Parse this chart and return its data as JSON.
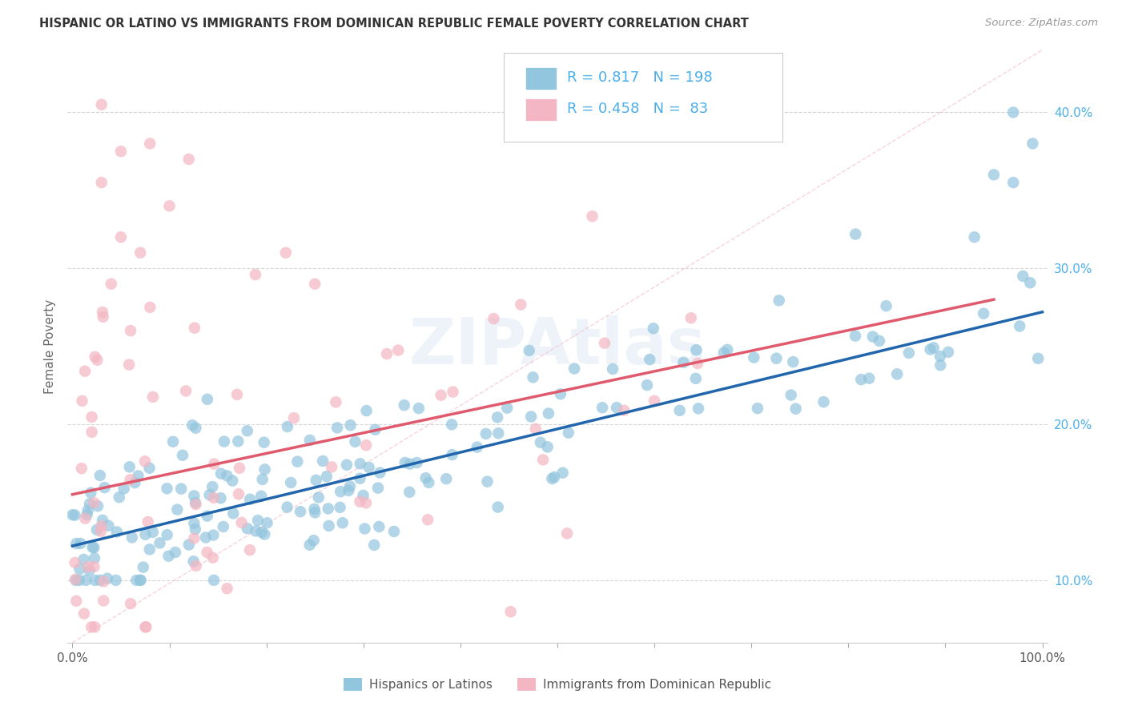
{
  "title": "HISPANIC OR LATINO VS IMMIGRANTS FROM DOMINICAN REPUBLIC FEMALE POVERTY CORRELATION CHART",
  "source": "Source: ZipAtlas.com",
  "ylabel": "Female Poverty",
  "legend_label_blue": "Hispanics or Latinos",
  "legend_label_pink": "Immigrants from Dominican Republic",
  "blue_R": "0.817",
  "blue_N": "198",
  "pink_R": "0.458",
  "pink_N": "83",
  "blue_color": "#92c5de",
  "pink_color": "#f4b6c2",
  "blue_line_color": "#2166ac",
  "pink_line_color": "#e05a6e",
  "dashed_line_color": "#f4b6c2",
  "watermark": "ZIPAtlas",
  "background_color": "#ffffff",
  "blue_seed": 99,
  "pink_seed": 77,
  "xlim": [
    0.0,
    1.0
  ],
  "ylim": [
    0.06,
    0.44
  ],
  "y_ticks": [
    0.1,
    0.2,
    0.3,
    0.4
  ],
  "y_tick_labels": [
    "10.0%",
    "20.0%",
    "30.0%",
    "40.0%"
  ],
  "x_ticks": [
    0.0,
    0.1,
    0.2,
    0.3,
    0.4,
    0.5,
    0.6,
    0.7,
    0.8,
    0.9,
    1.0
  ],
  "blue_line_x0": 0.0,
  "blue_line_x1": 1.0,
  "blue_line_y0": 0.122,
  "blue_line_y1": 0.272,
  "pink_line_x0": 0.0,
  "pink_line_x1": 0.95,
  "pink_line_y0": 0.155,
  "pink_line_y1": 0.28,
  "dashed_line_x0": 0.0,
  "dashed_line_x1": 1.0,
  "dashed_line_y0": 0.06,
  "dashed_line_y1": 0.44
}
